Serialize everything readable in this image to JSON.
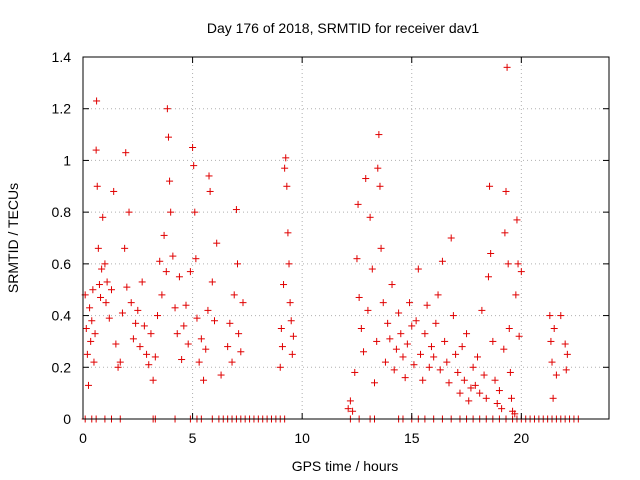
{
  "chart_data": {
    "type": "scatter",
    "title": "Day 176 of 2018, SRMTID for receiver dav1",
    "xlabel": "GPS time / hours",
    "ylabel": "SRMTID / TECUs",
    "xlim": [
      0,
      24
    ],
    "ylim": [
      0,
      1.4
    ],
    "x_ticks": [
      0,
      5,
      10,
      15,
      20
    ],
    "x_tick_labels": [
      "0",
      "5",
      "10",
      "15",
      "20"
    ],
    "y_ticks": [
      0,
      0.2,
      0.4,
      0.6,
      0.8,
      1.0,
      1.2,
      1.4
    ],
    "y_tick_labels": [
      "0",
      "0.2",
      "0.4",
      "0.6",
      "0.8",
      "1",
      "1.2",
      "1.4"
    ],
    "grid": true,
    "marker": "+",
    "marker_color": "#e00000",
    "series": [
      {
        "name": "SRMTID",
        "points": [
          [
            0.1,
            0.48
          ],
          [
            0.15,
            0.35
          ],
          [
            0.2,
            0.25
          ],
          [
            0.25,
            0.13
          ],
          [
            0.3,
            0.43
          ],
          [
            0.35,
            0.3
          ],
          [
            0.4,
            0.38
          ],
          [
            0.45,
            0.5
          ],
          [
            0.5,
            0.22
          ],
          [
            0.55,
            0.33
          ],
          [
            0.6,
            1.04
          ],
          [
            0.62,
            1.23
          ],
          [
            0.65,
            0.9
          ],
          [
            0.7,
            0.66
          ],
          [
            0.75,
            0.52
          ],
          [
            0.8,
            0.47
          ],
          [
            0.85,
            0.58
          ],
          [
            0.9,
            0.78
          ],
          [
            1.0,
            0.6
          ],
          [
            1.05,
            0.45
          ],
          [
            1.1,
            0.53
          ],
          [
            1.2,
            0.39
          ],
          [
            1.3,
            0.5
          ],
          [
            1.4,
            0.88
          ],
          [
            1.5,
            0.29
          ],
          [
            1.6,
            0.2
          ],
          [
            1.7,
            0.22
          ],
          [
            1.8,
            0.41
          ],
          [
            1.9,
            0.66
          ],
          [
            1.95,
            1.03
          ],
          [
            2.0,
            0.51
          ],
          [
            2.1,
            0.8
          ],
          [
            2.2,
            0.45
          ],
          [
            2.3,
            0.31
          ],
          [
            2.4,
            0.37
          ],
          [
            2.5,
            0.42
          ],
          [
            2.6,
            0.28
          ],
          [
            2.7,
            0.53
          ],
          [
            2.8,
            0.36
          ],
          [
            2.9,
            0.25
          ],
          [
            3.0,
            0.21
          ],
          [
            3.1,
            0.33
          ],
          [
            3.2,
            0.15
          ],
          [
            3.3,
            0.24
          ],
          [
            3.4,
            0.4
          ],
          [
            3.5,
            0.61
          ],
          [
            3.6,
            0.48
          ],
          [
            3.7,
            0.71
          ],
          [
            3.8,
            0.57
          ],
          [
            3.85,
            1.2
          ],
          [
            3.9,
            1.09
          ],
          [
            3.95,
            0.92
          ],
          [
            4.0,
            0.8
          ],
          [
            4.1,
            0.63
          ],
          [
            4.2,
            0.43
          ],
          [
            4.3,
            0.33
          ],
          [
            4.4,
            0.55
          ],
          [
            4.5,
            0.23
          ],
          [
            4.6,
            0.36
          ],
          [
            4.7,
            0.44
          ],
          [
            4.8,
            0.29
          ],
          [
            4.9,
            0.57
          ],
          [
            5.0,
            1.05
          ],
          [
            5.05,
            0.98
          ],
          [
            5.1,
            0.8
          ],
          [
            5.15,
            0.62
          ],
          [
            5.2,
            0.39
          ],
          [
            5.3,
            0.22
          ],
          [
            5.4,
            0.31
          ],
          [
            5.5,
            0.15
          ],
          [
            5.6,
            0.27
          ],
          [
            5.7,
            0.42
          ],
          [
            5.75,
            0.94
          ],
          [
            5.8,
            0.88
          ],
          [
            5.9,
            0.53
          ],
          [
            6.0,
            0.38
          ],
          [
            6.1,
            0.68
          ],
          [
            6.3,
            0.17
          ],
          [
            6.6,
            0.28
          ],
          [
            6.7,
            0.37
          ],
          [
            6.8,
            0.22
          ],
          [
            6.9,
            0.48
          ],
          [
            7.0,
            0.81
          ],
          [
            7.05,
            0.6
          ],
          [
            7.1,
            0.33
          ],
          [
            7.2,
            0.26
          ],
          [
            7.3,
            0.45
          ],
          [
            9.0,
            0.2
          ],
          [
            9.05,
            0.35
          ],
          [
            9.1,
            0.28
          ],
          [
            9.15,
            0.52
          ],
          [
            9.2,
            0.97
          ],
          [
            9.25,
            1.01
          ],
          [
            9.3,
            0.9
          ],
          [
            9.35,
            0.72
          ],
          [
            9.4,
            0.6
          ],
          [
            9.45,
            0.45
          ],
          [
            9.5,
            0.38
          ],
          [
            9.55,
            0.25
          ],
          [
            9.6,
            0.32
          ],
          [
            12.1,
            0.04
          ],
          [
            12.2,
            0.07
          ],
          [
            12.3,
            0.03
          ],
          [
            12.4,
            0.18
          ],
          [
            12.5,
            0.62
          ],
          [
            12.55,
            0.83
          ],
          [
            12.6,
            0.47
          ],
          [
            12.7,
            0.35
          ],
          [
            12.8,
            0.26
          ],
          [
            12.9,
            0.93
          ],
          [
            13.0,
            0.42
          ],
          [
            13.1,
            0.78
          ],
          [
            13.2,
            0.58
          ],
          [
            13.3,
            0.14
          ],
          [
            13.4,
            0.3
          ],
          [
            13.45,
            0.97
          ],
          [
            13.5,
            1.1
          ],
          [
            13.55,
            0.9
          ],
          [
            13.6,
            0.66
          ],
          [
            13.7,
            0.45
          ],
          [
            13.8,
            0.22
          ],
          [
            13.9,
            0.37
          ],
          [
            14.0,
            0.31
          ],
          [
            14.1,
            0.52
          ],
          [
            14.2,
            0.19
          ],
          [
            14.3,
            0.27
          ],
          [
            14.4,
            0.41
          ],
          [
            14.5,
            0.33
          ],
          [
            14.6,
            0.24
          ],
          [
            14.7,
            0.16
          ],
          [
            14.8,
            0.29
          ],
          [
            14.9,
            0.45
          ],
          [
            15.0,
            0.36
          ],
          [
            15.1,
            0.21
          ],
          [
            15.2,
            0.38
          ],
          [
            15.3,
            0.58
          ],
          [
            15.4,
            0.25
          ],
          [
            15.5,
            0.15
          ],
          [
            15.6,
            0.33
          ],
          [
            15.7,
            0.44
          ],
          [
            15.8,
            0.2
          ],
          [
            15.9,
            0.28
          ],
          [
            16.0,
            0.24
          ],
          [
            16.1,
            0.37
          ],
          [
            16.2,
            0.48
          ],
          [
            16.3,
            0.19
          ],
          [
            16.4,
            0.61
          ],
          [
            16.5,
            0.3
          ],
          [
            16.6,
            0.22
          ],
          [
            16.7,
            0.14
          ],
          [
            16.8,
            0.7
          ],
          [
            16.9,
            0.4
          ],
          [
            17.0,
            0.25
          ],
          [
            17.1,
            0.18
          ],
          [
            17.2,
            0.1
          ],
          [
            17.3,
            0.28
          ],
          [
            17.4,
            0.15
          ],
          [
            17.5,
            0.33
          ],
          [
            17.6,
            0.07
          ],
          [
            17.7,
            0.12
          ],
          [
            17.8,
            0.2
          ],
          [
            17.9,
            0.13
          ],
          [
            18.0,
            0.24
          ],
          [
            18.1,
            0.1
          ],
          [
            18.2,
            0.42
          ],
          [
            18.3,
            0.17
          ],
          [
            18.4,
            0.08
          ],
          [
            18.5,
            0.55
          ],
          [
            18.55,
            0.9
          ],
          [
            18.6,
            0.64
          ],
          [
            18.7,
            0.3
          ],
          [
            18.8,
            0.15
          ],
          [
            18.9,
            0.06
          ],
          [
            19.0,
            0.11
          ],
          [
            19.1,
            0.04
          ],
          [
            19.2,
            0.27
          ],
          [
            19.25,
            0.72
          ],
          [
            19.3,
            0.88
          ],
          [
            19.35,
            1.36
          ],
          [
            19.4,
            0.6
          ],
          [
            19.45,
            0.35
          ],
          [
            19.5,
            0.18
          ],
          [
            19.55,
            0.08
          ],
          [
            19.6,
            0.03
          ],
          [
            19.7,
            0.02
          ],
          [
            19.75,
            0.48
          ],
          [
            19.8,
            0.77
          ],
          [
            19.85,
            0.6
          ],
          [
            19.9,
            0.32
          ],
          [
            20.0,
            0.57
          ],
          [
            21.3,
            0.4
          ],
          [
            21.35,
            0.3
          ],
          [
            21.4,
            0.22
          ],
          [
            21.45,
            0.08
          ],
          [
            21.5,
            0.35
          ],
          [
            21.6,
            0.17
          ],
          [
            21.8,
            0.4
          ],
          [
            22.0,
            0.29
          ],
          [
            22.05,
            0.19
          ],
          [
            22.1,
            0.25
          ]
        ]
      }
    ],
    "zero_points_x": [
      0.1,
      0.4,
      0.6,
      1.0,
      1.3,
      1.7,
      3.2,
      3.3,
      4.2,
      4.9,
      5.2,
      5.4,
      5.9,
      6.2,
      6.4,
      6.6,
      6.8,
      7.0,
      7.2,
      7.4,
      7.6,
      7.8,
      8.0,
      8.2,
      8.4,
      8.6,
      8.8,
      9.0,
      9.2,
      12.2,
      12.6,
      13.1,
      13.3,
      14.4,
      14.6,
      15.0,
      15.3,
      15.6,
      16.0,
      16.4,
      16.8,
      17.2,
      17.5,
      17.8,
      18.1,
      18.4,
      18.7,
      19.0,
      19.3,
      19.6,
      19.8,
      20.0,
      20.2,
      20.4,
      20.6,
      20.8,
      21.0,
      21.2,
      21.4,
      21.6,
      21.8,
      22.0,
      22.2,
      22.4,
      22.6
    ]
  }
}
